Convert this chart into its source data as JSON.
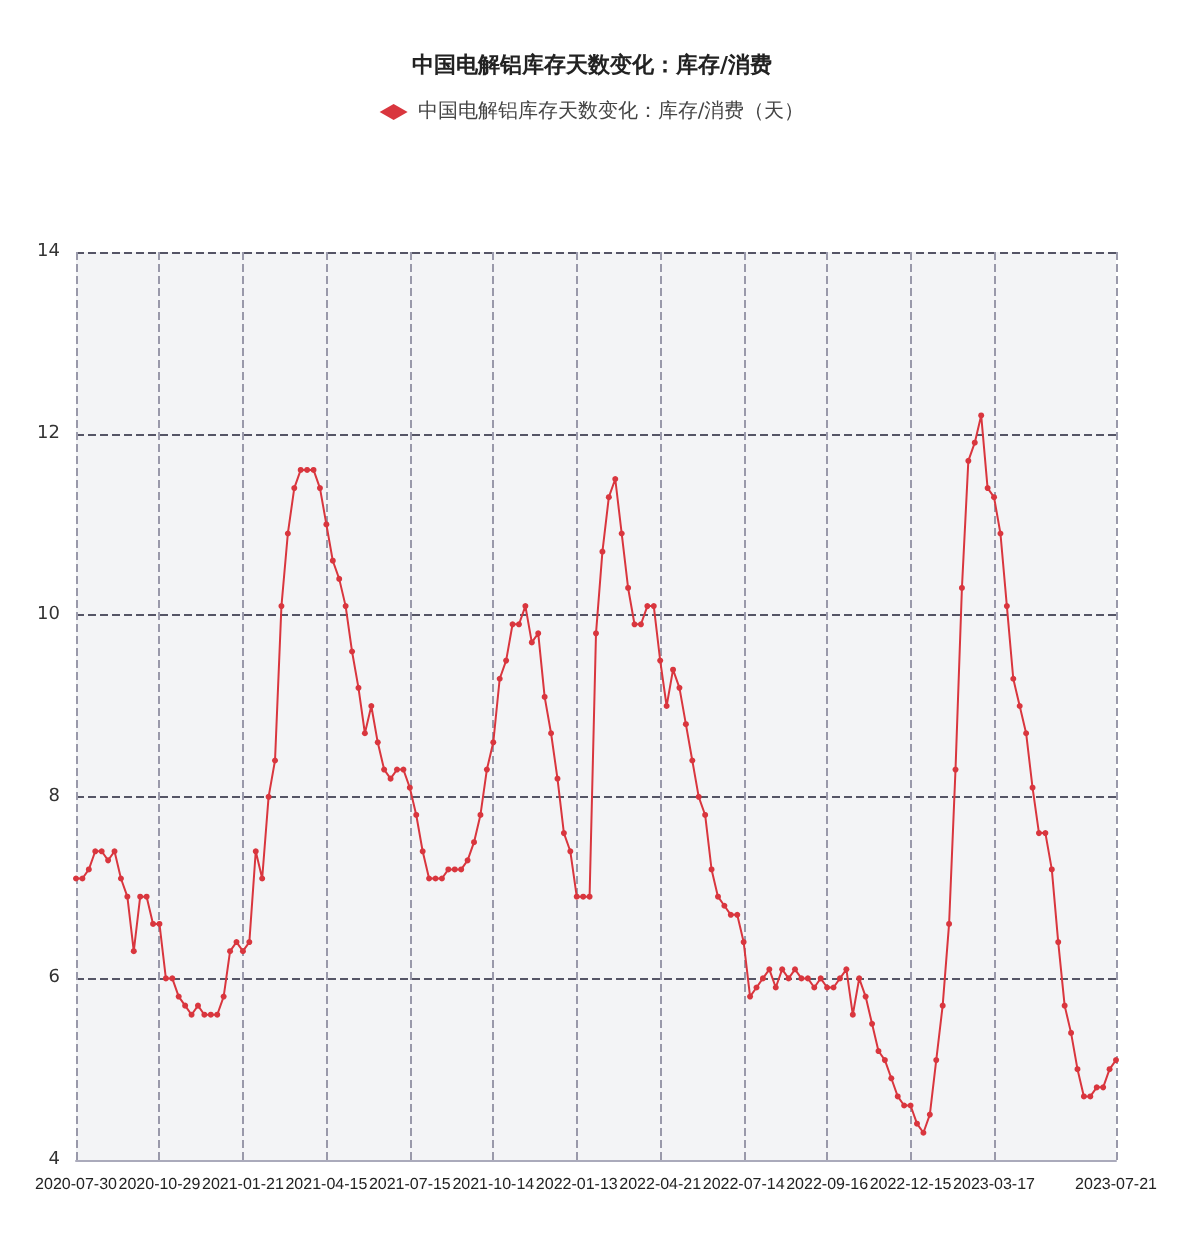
{
  "chart_data": {
    "type": "line",
    "title": "中国电解铝库存天数变化：库存/消费",
    "categories": [
      "2020-07-30",
      null,
      null,
      null,
      null,
      null,
      null,
      null,
      null,
      null,
      null,
      null,
      null,
      "2020-10-29",
      null,
      null,
      null,
      null,
      null,
      null,
      null,
      null,
      null,
      null,
      null,
      null,
      "2021-01-21",
      null,
      null,
      null,
      null,
      null,
      null,
      null,
      null,
      null,
      null,
      null,
      null,
      "2021-04-15",
      null,
      null,
      null,
      null,
      null,
      null,
      null,
      null,
      null,
      null,
      null,
      null,
      "2021-07-15",
      null,
      null,
      null,
      null,
      null,
      null,
      null,
      null,
      null,
      null,
      null,
      null,
      "2021-10-14",
      null,
      null,
      null,
      null,
      null,
      null,
      null,
      null,
      null,
      null,
      null,
      null,
      "2022-01-13",
      null,
      null,
      null,
      null,
      null,
      null,
      null,
      null,
      null,
      null,
      null,
      null,
      "2022-04-21",
      null,
      null,
      null,
      null,
      null,
      null,
      null,
      null,
      null,
      null,
      null,
      null,
      "2022-07-14",
      null,
      null,
      null,
      null,
      null,
      null,
      null,
      null,
      null,
      null,
      null,
      null,
      "2022-09-16",
      null,
      null,
      null,
      null,
      null,
      null,
      null,
      null,
      null,
      null,
      null,
      null,
      "2022-12-15",
      null,
      null,
      null,
      null,
      null,
      null,
      null,
      null,
      null,
      null,
      null,
      null,
      "2023-03-17",
      null,
      null,
      null,
      null,
      null,
      null,
      null,
      null,
      null,
      null,
      null,
      null,
      null,
      null,
      null,
      null,
      null,
      null,
      "2023-07-21"
    ],
    "series": [
      {
        "name": "中国电解铝库存天数变化：库存/消费（天）",
        "color": "#d9363e",
        "values": [
          7.1,
          7.1,
          7.2,
          7.4,
          7.4,
          7.3,
          7.4,
          7.1,
          6.9,
          6.3,
          6.9,
          6.9,
          6.6,
          6.6,
          6.0,
          6.0,
          5.8,
          5.7,
          5.6,
          5.7,
          5.6,
          5.6,
          5.6,
          5.8,
          6.3,
          6.4,
          6.3,
          6.4,
          7.4,
          7.1,
          8.0,
          8.4,
          10.1,
          10.9,
          11.4,
          11.6,
          11.6,
          11.6,
          11.4,
          11.0,
          10.6,
          10.4,
          10.1,
          9.6,
          9.2,
          8.7,
          9.0,
          8.6,
          8.3,
          8.2,
          8.3,
          8.3,
          8.1,
          7.8,
          7.4,
          7.1,
          7.1,
          7.1,
          7.2,
          7.2,
          7.2,
          7.3,
          7.5,
          7.8,
          8.3,
          8.6,
          9.3,
          9.5,
          9.9,
          9.9,
          10.1,
          9.7,
          9.8,
          9.1,
          8.7,
          8.2,
          7.6,
          7.4,
          6.9,
          6.9,
          6.9,
          9.8,
          10.7,
          11.3,
          11.5,
          10.9,
          10.3,
          9.9,
          9.9,
          10.1,
          10.1,
          9.5,
          9.0,
          9.4,
          9.2,
          8.8,
          8.4,
          8.0,
          7.8,
          7.2,
          6.9,
          6.8,
          6.7,
          6.7,
          6.4,
          5.8,
          5.9,
          6.0,
          6.1,
          5.9,
          6.1,
          6.0,
          6.1,
          6.0,
          6.0,
          5.9,
          6.0,
          5.9,
          5.9,
          6.0,
          6.1,
          5.6,
          6.0,
          5.8,
          5.5,
          5.2,
          5.1,
          4.9,
          4.7,
          4.6,
          4.6,
          4.4,
          4.3,
          4.5,
          5.1,
          5.7,
          6.6,
          8.3,
          10.3,
          11.7,
          11.9,
          12.2,
          11.4,
          11.3,
          10.9,
          10.1,
          9.3,
          9.0,
          8.7,
          8.1,
          7.6,
          7.6,
          7.2,
          6.4,
          5.7,
          5.4,
          5.0,
          4.7,
          4.7,
          4.8,
          4.8,
          5.0,
          5.1
        ]
      }
    ],
    "ylim": [
      4,
      14
    ],
    "yticks": [
      4,
      6,
      8,
      10,
      12,
      14
    ],
    "grid": true,
    "legend": "top",
    "marker": "circle",
    "line_style": "solid"
  }
}
